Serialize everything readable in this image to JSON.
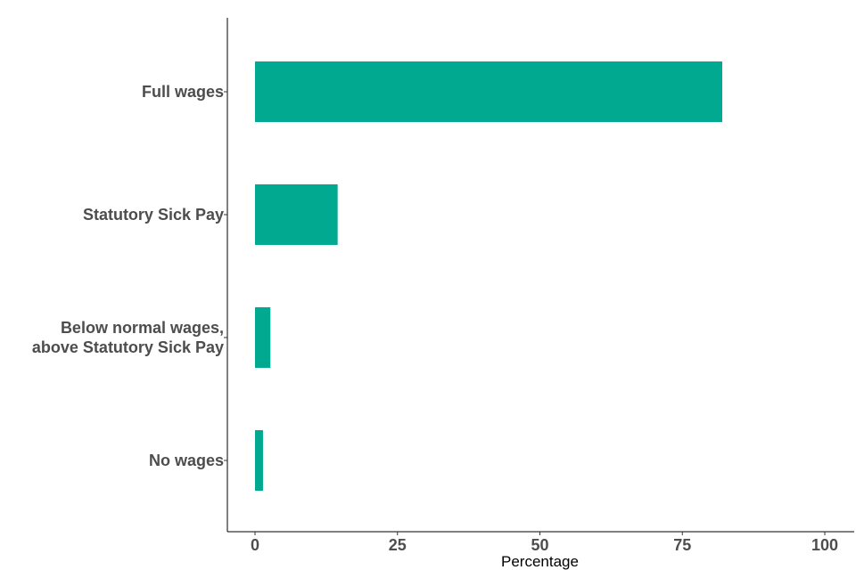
{
  "chart_data": {
    "type": "bar",
    "orientation": "horizontal",
    "categories": [
      [
        "Full wages"
      ],
      [
        "Statutory Sick Pay"
      ],
      [
        "Below normal wages,",
        "above Statutory Sick Pay"
      ],
      [
        "No wages"
      ]
    ],
    "values": [
      82,
      14.5,
      2.7,
      1.4
    ],
    "xlabel": "Percentage",
    "ylabel": "",
    "xlim": [
      0,
      100
    ],
    "xticks": [
      0,
      25,
      50,
      75,
      100
    ],
    "grid": false,
    "legend": "none",
    "bar_color": "#00a98f"
  }
}
